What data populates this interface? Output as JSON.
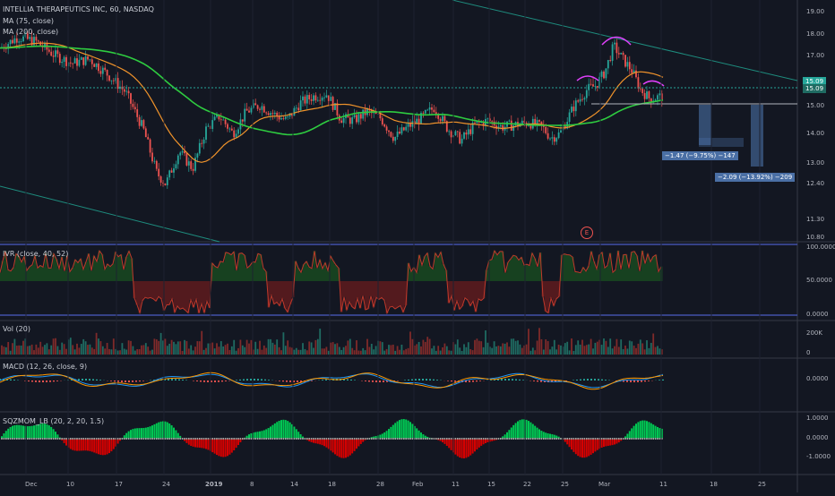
{
  "header": {
    "title": "INTELLIA THERAPEUTICS INC, 60, NASDAQ"
  },
  "indicators": {
    "ma75": "MA (75, close)",
    "ma200": "MA (200, close)",
    "ivr": "IVR (close, 40, 52)",
    "vol": "Vol (20)",
    "macd": "MACD (12, 26, close, 9)",
    "sqz": "SQZMOM_LB (20, 2, 20, 1.5)"
  },
  "price_axis": [
    "19.00",
    "18.00",
    "17.00",
    "15.00",
    "14.00",
    "13.00",
    "12.40",
    "11.30",
    "10.80"
  ],
  "price_tags": {
    "current": "15.09",
    "current2": "15.09"
  },
  "ivr_axis": [
    "100.0000",
    "50.0000",
    "0.0000"
  ],
  "vol_axis": [
    "200K",
    "0"
  ],
  "macd_axis": [
    "0.0000"
  ],
  "sqz_axis": [
    "1.0000",
    "0.0000",
    "-1.0000"
  ],
  "time_axis": [
    "Dec",
    "10",
    "17",
    "24",
    "2019",
    "8",
    "14",
    "18",
    "28",
    "Feb",
    "11",
    "15",
    "22",
    "25",
    "Mar",
    "11",
    "18",
    "25"
  ],
  "measures": {
    "m1": "−1.47 (−9.75%) −147",
    "m2": "−2.09 (−13.92%) −209"
  },
  "earnings_marker": "E",
  "colors": {
    "bg": "#131722",
    "up": "#26a69a",
    "down": "#ef5350",
    "ma75": "#f0932b",
    "ma200": "#2ecc40",
    "trend": "#1e8c7e",
    "measure": "#4a6fa5",
    "ivr_line": "#4b5cc4"
  }
}
